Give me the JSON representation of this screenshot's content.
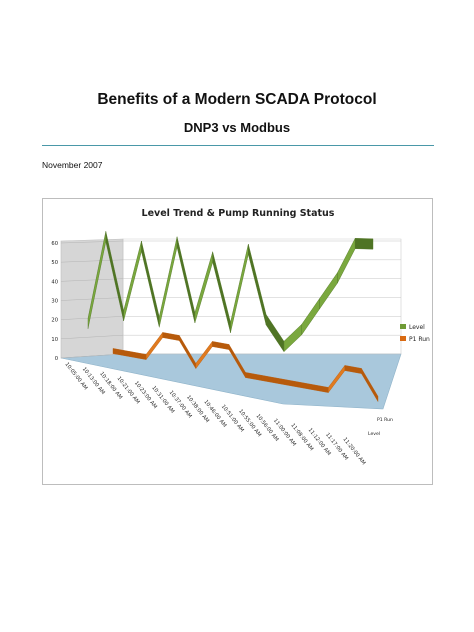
{
  "document": {
    "title": "Benefits of a Modern SCADA Protocol",
    "subtitle": "DNP3 vs Modbus",
    "date": "November 2007"
  },
  "colors": {
    "rule": "#4a98a8",
    "level_series": "#6e9a35",
    "pump_series": "#d96a12",
    "floor": "#a9c8dc"
  },
  "chart_data": {
    "type": "line",
    "style": "3d-ribbon",
    "title": "Level Trend & Pump Running Status",
    "ylim": [
      0,
      60
    ],
    "yticks": [
      "0",
      "10",
      "20",
      "30",
      "40",
      "50",
      "60"
    ],
    "categories": [
      "10:05:00 AM",
      "10:13:00 AM",
      "10:18:00 AM",
      "10:21:00 AM",
      "10:23:00 AM",
      "10:31:00 AM",
      "10:37:00 AM",
      "10:38:00 AM",
      "10:46:00 AM",
      "10:51:00 AM",
      "10:55:00 AM",
      "10:56:00 AM",
      "11:00:00 AM",
      "11:08:00 AM",
      "11:12:00 AM",
      "11:17:00 AM",
      "11:20:00 AM"
    ],
    "series": [
      {
        "name": "Level",
        "values": [
          10,
          60,
          15,
          55,
          12,
          58,
          15,
          50,
          10,
          55,
          15,
          0,
          10,
          25,
          40,
          60,
          60
        ]
      },
      {
        "name": "P1 Run",
        "values": [
          0,
          0,
          0,
          10,
          10,
          0,
          10,
          10,
          0,
          0,
          0,
          0,
          0,
          0,
          10,
          10,
          0
        ]
      }
    ],
    "depth_labels": [
      "P1 Run",
      "Level"
    ],
    "legend": "right",
    "grid": true
  }
}
